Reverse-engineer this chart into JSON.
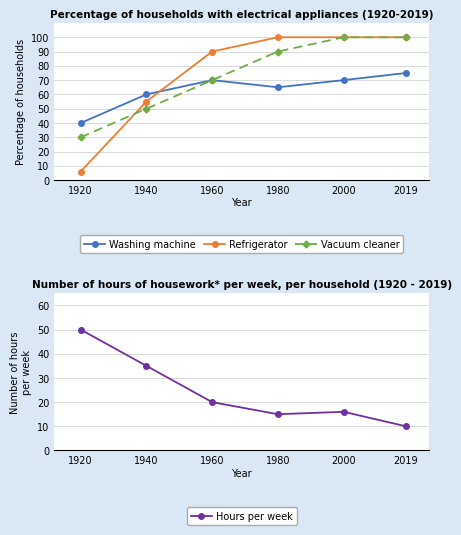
{
  "years": [
    1920,
    1940,
    1960,
    1980,
    2000,
    2019
  ],
  "washing_machine": [
    40,
    60,
    70,
    65,
    70,
    75
  ],
  "refrigerator": [
    6,
    55,
    90,
    100,
    100,
    100
  ],
  "vacuum_cleaner": [
    30,
    50,
    70,
    90,
    100,
    100
  ],
  "hours_per_week": [
    50,
    35,
    20,
    15,
    16,
    10
  ],
  "title1": "Percentage of households with electrical appliances (1920-2019)",
  "title2": "Number of hours of housework* per week, per household (1920 - 2019)",
  "ylabel1": "Percentage of households",
  "ylabel2": "Number of hours\nper week",
  "xlabel": "Year",
  "ylim1": [
    0,
    110
  ],
  "ylim2": [
    0,
    65
  ],
  "yticks1": [
    0,
    10,
    20,
    30,
    40,
    50,
    60,
    70,
    80,
    90,
    100
  ],
  "yticks2": [
    0,
    10,
    20,
    30,
    40,
    50,
    60
  ],
  "color_washing": "#4472C4",
  "color_refrigerator": "#ED7D31",
  "color_vacuum": "#70AD47",
  "color_hours": "#7030A0",
  "bg_color": "#DAE8F5",
  "plot_bg": "#FFFFFF",
  "legend1_labels": [
    "Washing machine",
    "Refrigerator",
    "Vacuum cleaner"
  ],
  "legend2_label": "Hours per week",
  "title_fontsize": 7.5,
  "axis_fontsize": 7,
  "tick_fontsize": 7,
  "legend_fontsize": 7
}
